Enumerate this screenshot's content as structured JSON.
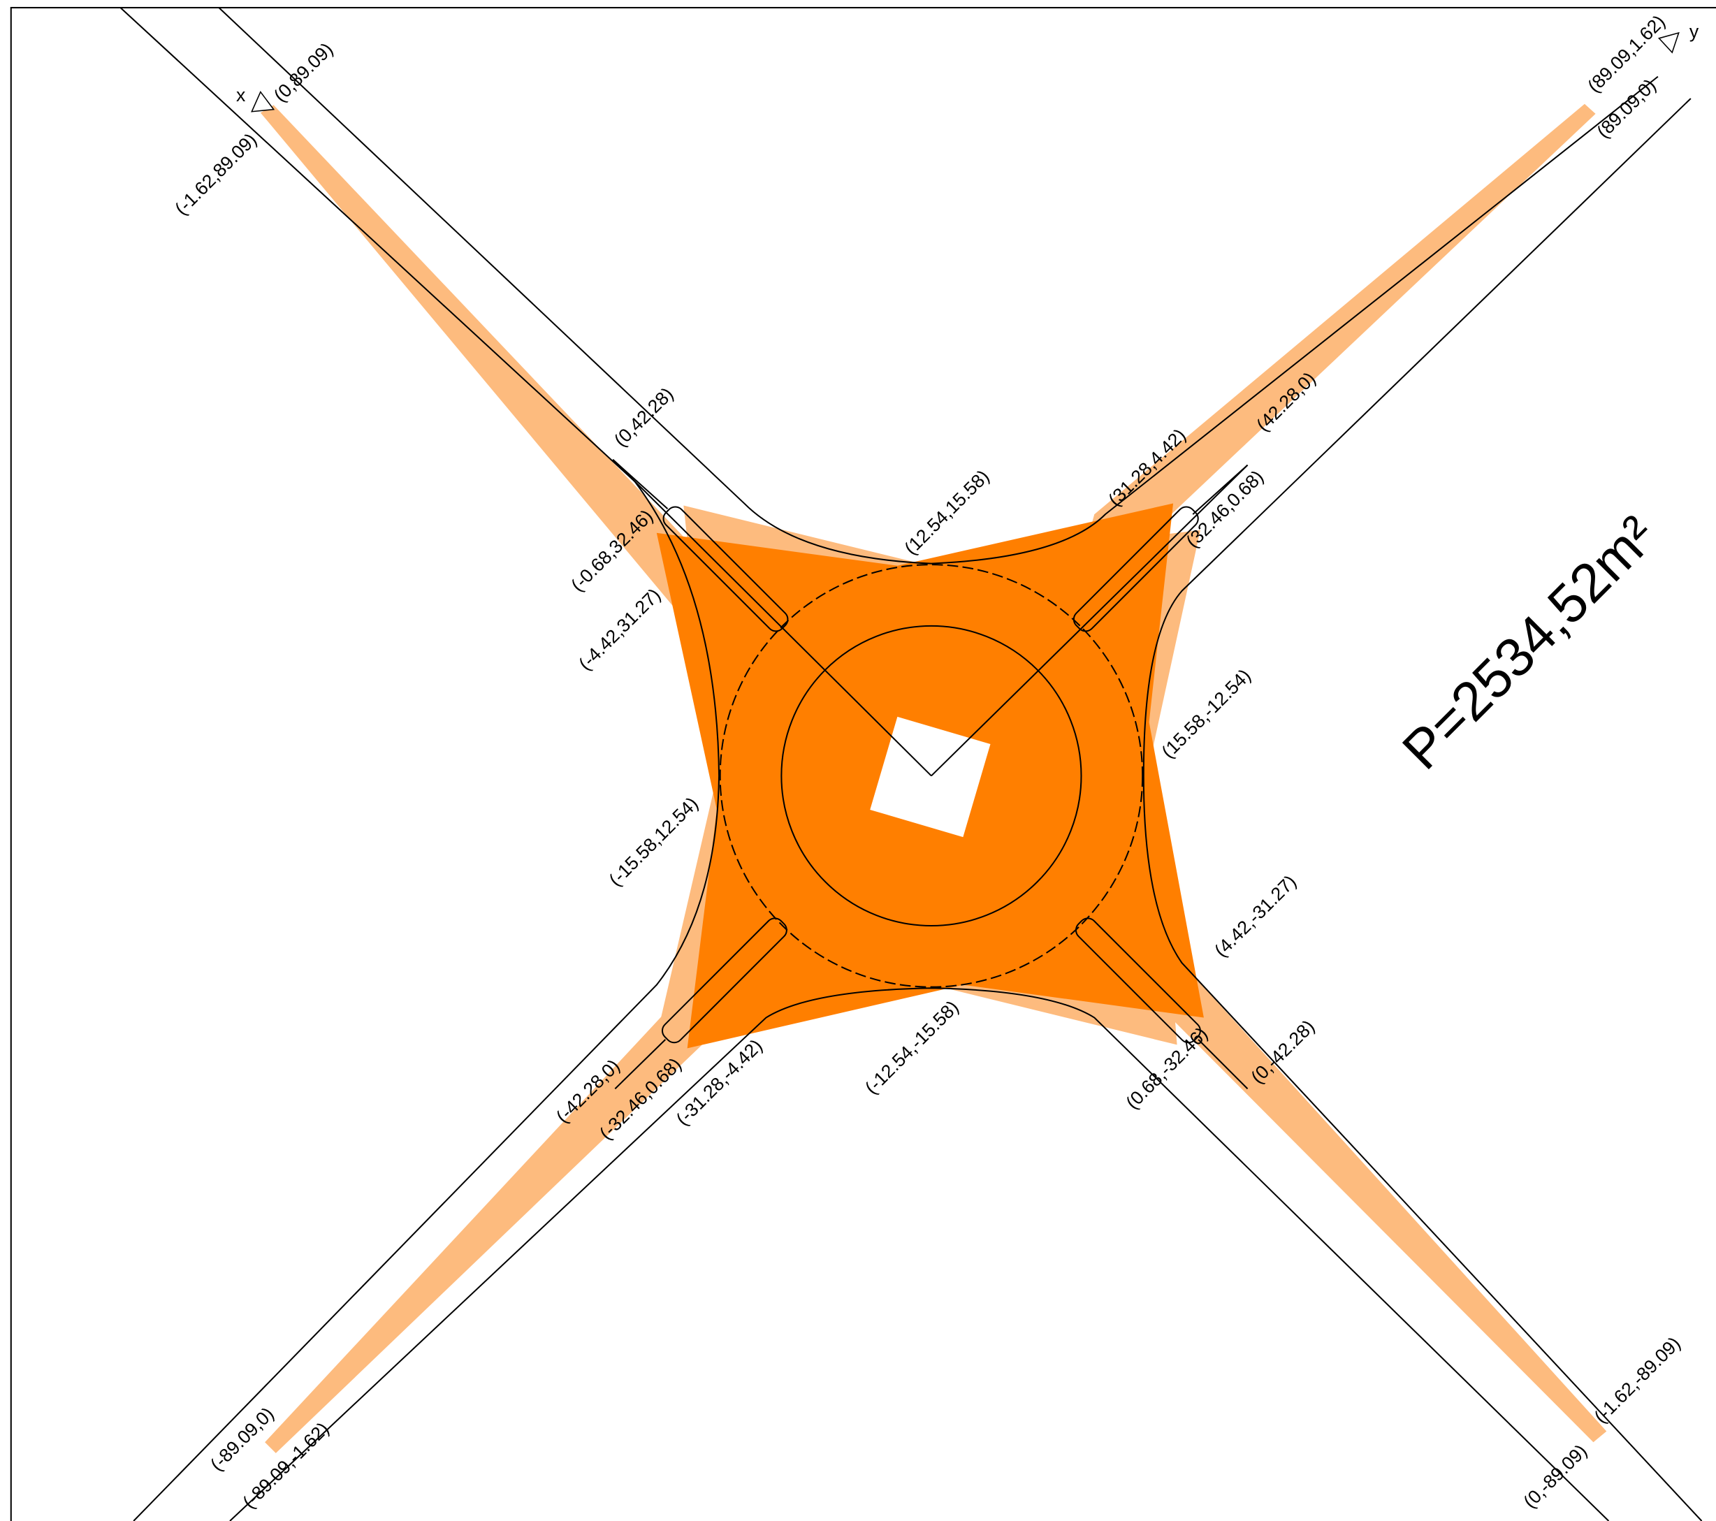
{
  "axes": {
    "x": "x",
    "y": "y"
  },
  "area": "P=2534,52m²",
  "coordinates": [
    "(0,89.09)",
    "(-1.62,89.09)",
    "(89.09,1.62)",
    "(89.09,0)",
    "(0,42.28)",
    "(-0.68,32.46)",
    "(-4.42,31.27)",
    "(12.54,15.58)",
    "(31.28,4.42)",
    "(42.28,0)",
    "(32.46,0.68)",
    "(15.58,-12.54)",
    "(-15.58,12.54)",
    "(4.42,-31.27)",
    "(0,-42.28)",
    "(0.68,-32.46)",
    "(-12.54,-15.58)",
    "(-31.28,-4.42)",
    "(-42.28,0)",
    "(-32.46,0.68)",
    "(-89.09,0)",
    "(-89.09,-1.62)",
    "(-1.62,-89.09)",
    "(0,-89.09)"
  ]
}
